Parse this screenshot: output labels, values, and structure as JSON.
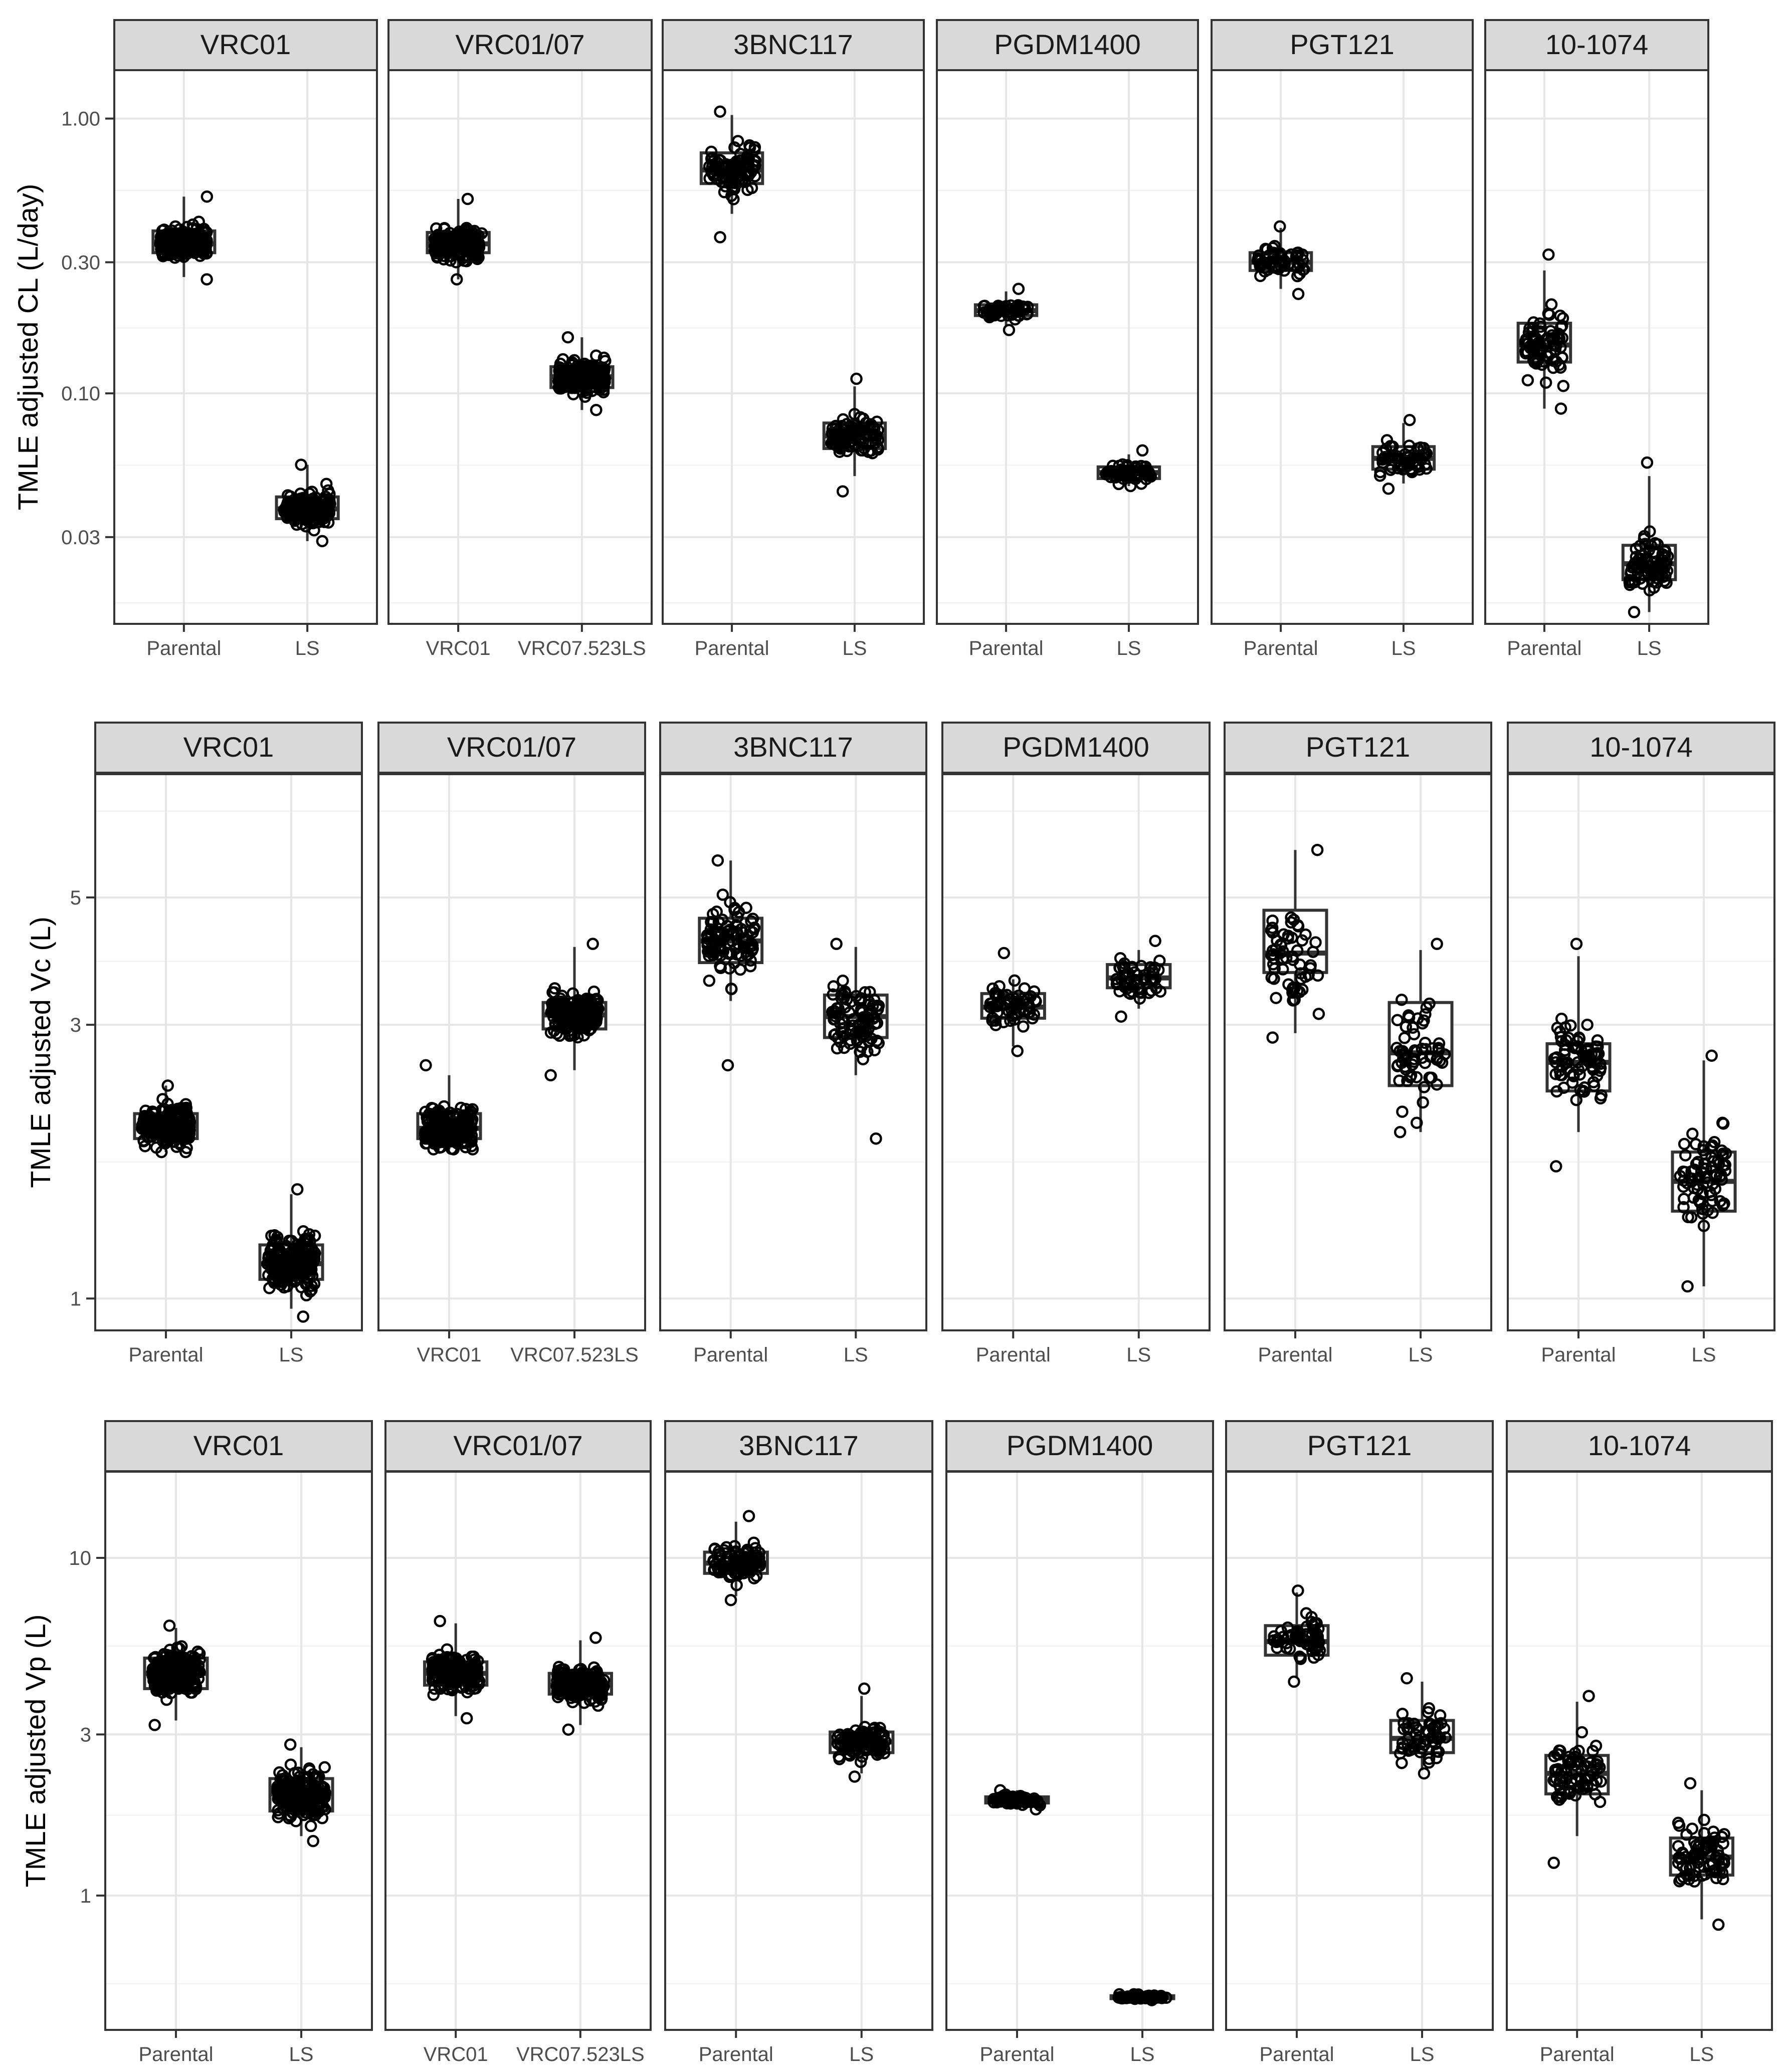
{
  "chart_data": [
    {
      "type": "boxplot-with-jitter",
      "row": 1,
      "ylabel": "TMLE adjusted CL (L/day)",
      "yscale": "log10",
      "ylim": [
        0.0145,
        1.5
      ],
      "yticks": [
        {
          "v": 0.03,
          "label": "0.03"
        },
        {
          "v": 0.1,
          "label": "0.10"
        },
        {
          "v": 0.3,
          "label": "0.30"
        },
        {
          "v": 1.0,
          "label": "1.00"
        }
      ],
      "yminor": [
        0.0173,
        0.0548,
        0.173,
        0.548
      ],
      "panels": [
        {
          "title": "VRC01",
          "categories": [
            "Parental",
            "LS"
          ],
          "groups": [
            {
              "q1": 0.325,
              "med": 0.35,
              "q3": 0.39,
              "wlo": 0.265,
              "whi": 0.52,
              "min": 0.26,
              "max": 0.52,
              "n": 200
            },
            {
              "q1": 0.035,
              "med": 0.038,
              "q3": 0.042,
              "wlo": 0.029,
              "whi": 0.055,
              "min": 0.029,
              "max": 0.055,
              "n": 200
            }
          ]
        },
        {
          "title": "VRC01/07",
          "categories": [
            "VRC01",
            "VRC07.523LS"
          ],
          "groups": [
            {
              "q1": 0.325,
              "med": 0.35,
              "q3": 0.385,
              "wlo": 0.26,
              "whi": 0.51,
              "min": 0.26,
              "max": 0.51,
              "n": 200
            },
            {
              "q1": 0.105,
              "med": 0.115,
              "q3": 0.125,
              "wlo": 0.087,
              "whi": 0.16,
              "min": 0.087,
              "max": 0.16,
              "n": 200
            }
          ]
        },
        {
          "title": "3BNC117",
          "categories": [
            "Parental",
            "LS"
          ],
          "groups": [
            {
              "q1": 0.58,
              "med": 0.65,
              "q3": 0.75,
              "wlo": 0.45,
              "whi": 1.03,
              "min": 0.37,
              "max": 1.06,
              "n": 100
            },
            {
              "q1": 0.063,
              "med": 0.07,
              "q3": 0.078,
              "wlo": 0.05,
              "whi": 0.106,
              "min": 0.044,
              "max": 0.113,
              "n": 100
            }
          ]
        },
        {
          "title": "PGDM1400",
          "categories": [
            "Parental",
            "LS"
          ],
          "groups": [
            {
              "q1": 0.192,
              "med": 0.2,
              "q3": 0.21,
              "wlo": 0.175,
              "whi": 0.235,
              "min": 0.17,
              "max": 0.24,
              "n": 60
            },
            {
              "q1": 0.049,
              "med": 0.0515,
              "q3": 0.054,
              "wlo": 0.046,
              "whi": 0.06,
              "min": 0.046,
              "max": 0.062,
              "n": 60
            }
          ]
        },
        {
          "title": "PGT121",
          "categories": [
            "Parental",
            "LS"
          ],
          "groups": [
            {
              "q1": 0.28,
              "med": 0.3,
              "q3": 0.325,
              "wlo": 0.24,
              "whi": 0.4,
              "min": 0.23,
              "max": 0.405,
              "n": 60
            },
            {
              "q1": 0.053,
              "med": 0.058,
              "q3": 0.064,
              "wlo": 0.047,
              "whi": 0.078,
              "min": 0.045,
              "max": 0.08,
              "n": 60
            }
          ]
        },
        {
          "title": "10-1074",
          "categories": [
            "Parental",
            "LS"
          ],
          "groups": [
            {
              "q1": 0.13,
              "med": 0.15,
              "q3": 0.18,
              "wlo": 0.088,
              "whi": 0.28,
              "min": 0.088,
              "max": 0.32,
              "n": 80
            },
            {
              "q1": 0.021,
              "med": 0.024,
              "q3": 0.028,
              "wlo": 0.016,
              "whi": 0.05,
              "min": 0.016,
              "max": 0.056,
              "n": 80
            }
          ]
        }
      ]
    },
    {
      "type": "boxplot-with-jitter",
      "row": 2,
      "ylabel": "TMLE adjusted Vc (L)",
      "yscale": "log10",
      "ylim": [
        0.88,
        8.2
      ],
      "yticks": [
        {
          "v": 1,
          "label": "1"
        },
        {
          "v": 3,
          "label": "3"
        },
        {
          "v": 5,
          "label": "5"
        }
      ],
      "yminor": [
        1.73,
        3.87,
        7.07
      ],
      "panels": [
        {
          "title": "VRC01",
          "categories": [
            "Parental",
            "LS"
          ],
          "groups": [
            {
              "q1": 1.9,
              "med": 2.0,
              "q3": 2.1,
              "wlo": 1.8,
              "whi": 2.35,
              "min": 1.8,
              "max": 2.35,
              "n": 200
            },
            {
              "q1": 1.08,
              "med": 1.15,
              "q3": 1.24,
              "wlo": 0.96,
              "whi": 1.52,
              "min": 0.93,
              "max": 1.55,
              "n": 200
            }
          ]
        },
        {
          "title": "VRC01/07",
          "categories": [
            "VRC01",
            "VRC07.523LS"
          ],
          "groups": [
            {
              "q1": 1.9,
              "med": 1.98,
              "q3": 2.1,
              "wlo": 1.82,
              "whi": 2.45,
              "min": 1.82,
              "max": 2.55,
              "n": 200
            },
            {
              "q1": 2.95,
              "med": 3.12,
              "q3": 3.28,
              "wlo": 2.5,
              "whi": 4.1,
              "min": 2.45,
              "max": 4.15,
              "n": 200
            }
          ]
        },
        {
          "title": "3BNC117",
          "categories": [
            "Parental",
            "LS"
          ],
          "groups": [
            {
              "q1": 3.85,
              "med": 4.2,
              "q3": 4.6,
              "wlo": 3.3,
              "whi": 5.8,
              "min": 2.55,
              "max": 5.8,
              "n": 100
            },
            {
              "q1": 2.85,
              "med": 3.1,
              "q3": 3.38,
              "wlo": 2.45,
              "whi": 4.1,
              "min": 1.9,
              "max": 4.15,
              "n": 100
            }
          ]
        },
        {
          "title": "PGDM1400",
          "categories": [
            "Parental",
            "LS"
          ],
          "groups": [
            {
              "q1": 3.08,
              "med": 3.22,
              "q3": 3.4,
              "wlo": 2.75,
              "whi": 3.6,
              "min": 2.7,
              "max": 4.0,
              "n": 60
            },
            {
              "q1": 3.48,
              "med": 3.62,
              "q3": 3.82,
              "wlo": 3.2,
              "whi": 4.05,
              "min": 3.1,
              "max": 4.2,
              "n": 60
            }
          ]
        },
        {
          "title": "PGT121",
          "categories": [
            "Parental",
            "LS"
          ],
          "groups": [
            {
              "q1": 3.7,
              "med": 4.0,
              "q3": 4.75,
              "wlo": 2.9,
              "whi": 6.05,
              "min": 2.85,
              "max": 6.05,
              "n": 60
            },
            {
              "q1": 2.35,
              "med": 2.68,
              "q3": 3.28,
              "wlo": 1.95,
              "whi": 4.05,
              "min": 1.95,
              "max": 4.15,
              "n": 60
            }
          ]
        },
        {
          "title": "10-1074",
          "categories": [
            "Parental",
            "LS"
          ],
          "groups": [
            {
              "q1": 2.3,
              "med": 2.58,
              "q3": 2.78,
              "wlo": 1.95,
              "whi": 3.95,
              "min": 1.7,
              "max": 4.15,
              "n": 80
            },
            {
              "q1": 1.42,
              "med": 1.6,
              "q3": 1.8,
              "wlo": 1.05,
              "whi": 2.6,
              "min": 1.05,
              "max": 2.65,
              "n": 80
            }
          ]
        }
      ]
    },
    {
      "type": "boxplot-with-jitter",
      "row": 3,
      "ylabel": "TMLE adjusted Vp (L)",
      "yscale": "log10",
      "ylim": [
        0.4,
        18.0
      ],
      "yticks": [
        {
          "v": 1,
          "label": "1"
        },
        {
          "v": 3,
          "label": "3"
        },
        {
          "v": 10,
          "label": "10"
        }
      ],
      "yminor": [
        0.548,
        1.73,
        5.48
      ],
      "panels": [
        {
          "title": "VRC01",
          "categories": [
            "Parental",
            "LS"
          ],
          "groups": [
            {
              "q1": 4.1,
              "med": 4.55,
              "q3": 5.05,
              "wlo": 3.3,
              "whi": 6.2,
              "min": 3.2,
              "max": 6.3,
              "n": 200
            },
            {
              "q1": 1.78,
              "med": 2.0,
              "q3": 2.22,
              "wlo": 1.5,
              "whi": 2.75,
              "min": 1.45,
              "max": 2.8,
              "n": 200
            }
          ]
        },
        {
          "title": "VRC01/07",
          "categories": [
            "VRC01",
            "VRC07.523LS"
          ],
          "groups": [
            {
              "q1": 4.2,
              "med": 4.55,
              "q3": 4.92,
              "wlo": 3.4,
              "whi": 6.4,
              "min": 3.35,
              "max": 6.5,
              "n": 200
            },
            {
              "q1": 3.95,
              "med": 4.2,
              "q3": 4.55,
              "wlo": 3.2,
              "whi": 5.7,
              "min": 3.1,
              "max": 5.8,
              "n": 200
            }
          ]
        },
        {
          "title": "3BNC117",
          "categories": [
            "Parental",
            "LS"
          ],
          "groups": [
            {
              "q1": 9.0,
              "med": 9.65,
              "q3": 10.4,
              "wlo": 7.7,
              "whi": 12.8,
              "min": 7.5,
              "max": 13.3,
              "n": 100
            },
            {
              "q1": 2.65,
              "med": 2.85,
              "q3": 3.05,
              "wlo": 2.3,
              "whi": 3.9,
              "min": 2.25,
              "max": 4.1,
              "n": 100
            }
          ]
        },
        {
          "title": "PGDM1400",
          "categories": [
            "Parental",
            "LS"
          ],
          "groups": [
            {
              "q1": 1.88,
              "med": 1.92,
              "q3": 1.96,
              "wlo": 1.8,
              "whi": 2.05,
              "min": 1.8,
              "max": 2.05,
              "n": 60
            },
            {
              "q1": 0.495,
              "med": 0.5,
              "q3": 0.505,
              "wlo": 0.49,
              "whi": 0.51,
              "min": 0.49,
              "max": 0.51,
              "n": 60
            }
          ]
        },
        {
          "title": "PGT121",
          "categories": [
            "Parental",
            "LS"
          ],
          "groups": [
            {
              "q1": 5.15,
              "med": 5.65,
              "q3": 6.3,
              "wlo": 4.4,
              "whi": 7.9,
              "min": 4.3,
              "max": 8.0,
              "n": 60
            },
            {
              "q1": 2.65,
              "med": 2.92,
              "q3": 3.3,
              "wlo": 2.35,
              "whi": 4.3,
              "min": 2.3,
              "max": 4.4,
              "n": 60
            }
          ]
        },
        {
          "title": "10-1074",
          "categories": [
            "Parental",
            "LS"
          ],
          "groups": [
            {
              "q1": 2.0,
              "med": 2.3,
              "q3": 2.6,
              "wlo": 1.5,
              "whi": 3.75,
              "min": 1.25,
              "max": 3.9,
              "n": 80
            },
            {
              "q1": 1.15,
              "med": 1.3,
              "q3": 1.48,
              "wlo": 0.85,
              "whi": 2.05,
              "min": 0.82,
              "max": 2.15,
              "n": 80
            }
          ]
        }
      ]
    }
  ]
}
